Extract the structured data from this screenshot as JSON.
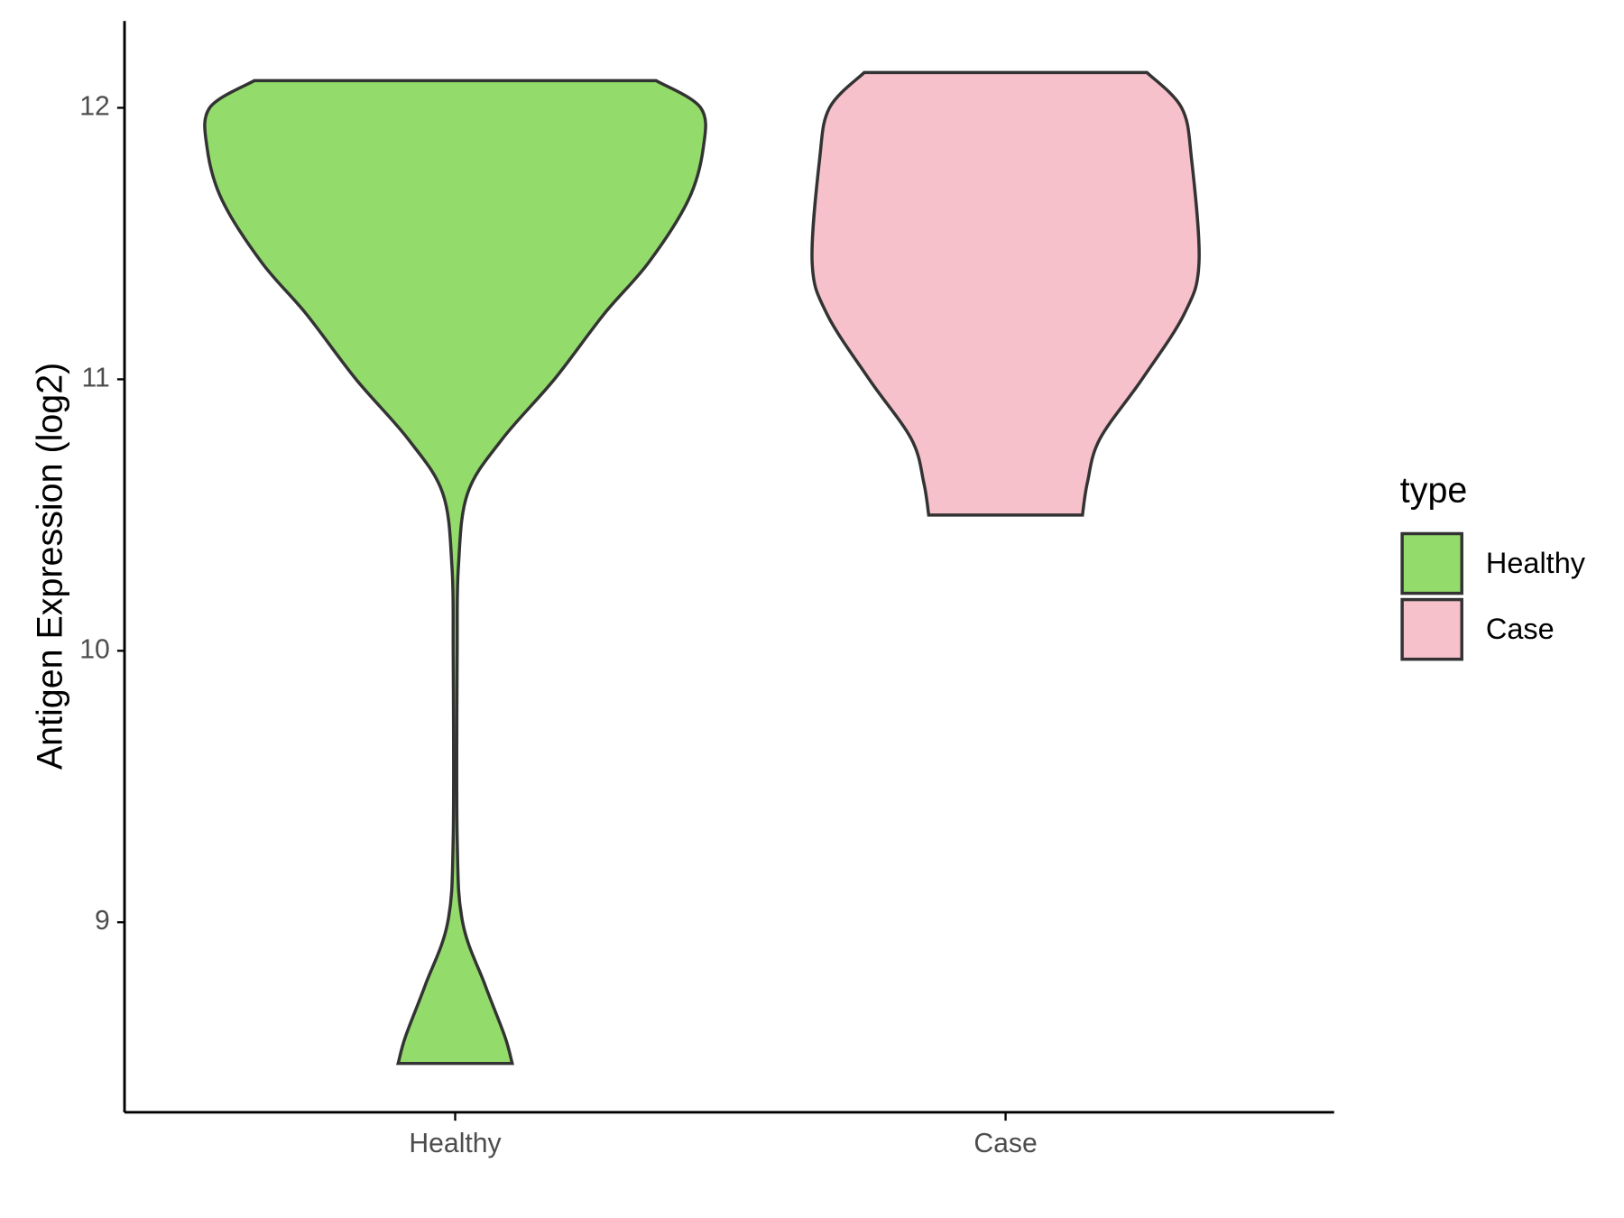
{
  "chart_data": {
    "type": "violin",
    "y_label": "Antigen Expression (log2)",
    "categories": [
      "Healthy",
      "Case"
    ],
    "series": [
      {
        "name": "Healthy",
        "color": "#93dc6b",
        "y": [
          12.1,
          12.0,
          11.85,
          11.66,
          11.43,
          11.24,
          11.0,
          10.78,
          10.58,
          10.31,
          10.0,
          9.31,
          9.0,
          8.77,
          8.58,
          8.48
        ],
        "density": [
          0.81,
          0.99,
          1.0,
          0.94,
          0.78,
          0.6,
          0.4,
          0.19,
          0.05,
          0.013,
          0.008,
          0.008,
          0.03,
          0.12,
          0.2,
          0.23
        ]
      },
      {
        "name": "Case",
        "color": "#f7c1cc",
        "y": [
          12.13,
          12.0,
          11.81,
          11.43,
          11.24,
          11.0,
          10.78,
          10.62,
          10.5
        ],
        "density": [
          0.57,
          0.71,
          0.75,
          0.78,
          0.72,
          0.55,
          0.38,
          0.33,
          0.31
        ]
      }
    ],
    "ylim": [
      8.3,
      12.32
    ],
    "yticks": [
      9,
      10,
      11,
      12
    ],
    "legend_title": "type",
    "legend_position": "right"
  }
}
